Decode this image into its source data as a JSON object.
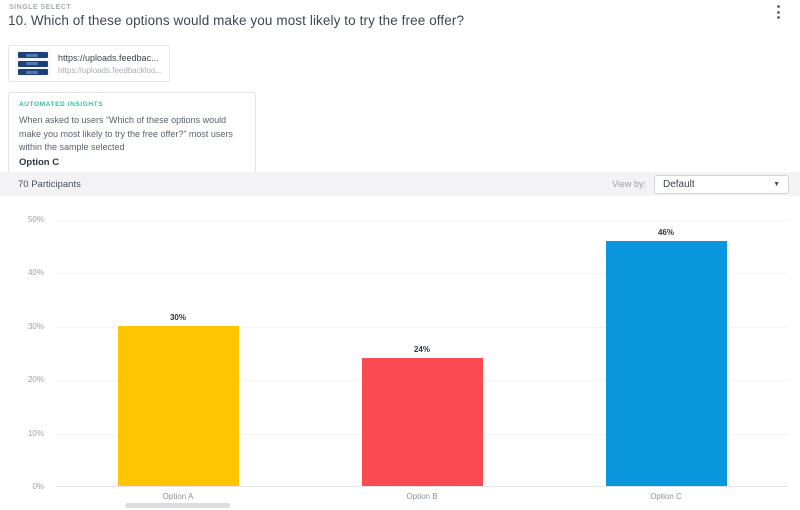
{
  "header": {
    "question_type": "SINGLE SELECT",
    "question_title": "10. Which of these options would make you most likely to try the free offer?"
  },
  "attachment": {
    "link_text": "https://uploads.feedbac...",
    "link_subtext": "https://uploads.feedbackloo..."
  },
  "insights": {
    "label": "AUTOMATED INSIGHTS",
    "text": "When asked to users “Which of these options would make you most likely to try the free offer?” most users within the sample selected",
    "highlight": "Option C"
  },
  "toolbar": {
    "participants": "70 Participants",
    "view_by_label": "View by:",
    "view_by_value": "Default",
    "caret": "▼"
  },
  "colors": {
    "insights_accent": "#2fc0a4",
    "toolbar_bg": "#f3f3f6",
    "bar_yellow": "#FFC502",
    "bar_red": "#FC4B50",
    "bar_blue": "#0A96DD"
  },
  "chart_data": {
    "type": "bar",
    "title": "",
    "xlabel": "",
    "ylabel": "",
    "categories": [
      "Option A",
      "Option B",
      "Option C"
    ],
    "values": [
      30,
      24,
      46
    ],
    "value_labels": [
      "30%",
      "24%",
      "46%"
    ],
    "bar_colors": [
      "#FFC502",
      "#FC4B50",
      "#0A96DD"
    ],
    "y_ticks": [
      "50%",
      "40%",
      "30%",
      "20%",
      "10%",
      "0%"
    ],
    "ylim": [
      0,
      50
    ],
    "grid": true,
    "legend": false
  }
}
